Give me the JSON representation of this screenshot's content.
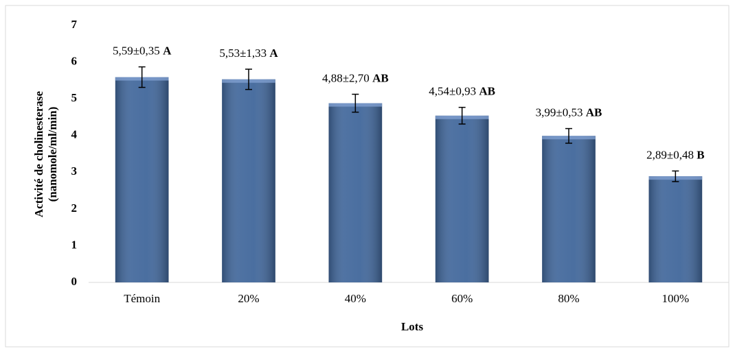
{
  "chart_data": {
    "type": "bar",
    "y_label_lines": [
      "Activité de cholinesterase",
      "(nanomole/ml/min)"
    ],
    "x_label": "Lots",
    "categories": [
      "Témoin",
      "20%",
      "40%",
      "60%",
      "80%",
      "100%"
    ],
    "values": [
      5.59,
      5.53,
      4.88,
      4.54,
      3.99,
      2.89
    ],
    "value_labels": [
      "5,59±0,35",
      "5,53±1,33",
      "4,88±2,70",
      "4,54±0,93",
      "3,99±0,53",
      "2,89±0,48"
    ],
    "groups": [
      "A",
      "A",
      "AB",
      "AB",
      "AB",
      "B"
    ],
    "error_percent": 5,
    "color": "#41679b",
    "ylim": [
      0,
      7
    ],
    "yticks": [
      0,
      1,
      2,
      3,
      4,
      5,
      6,
      7
    ],
    "grid": false
  }
}
